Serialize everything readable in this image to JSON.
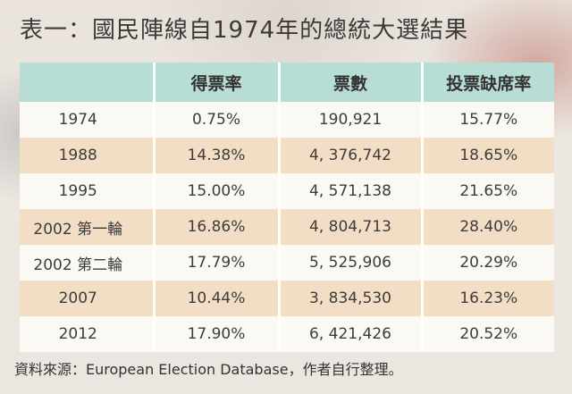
{
  "title": "表一：國民陣線自1974年的總統大選結果",
  "table": {
    "headers": [
      "",
      "得票率",
      "票數",
      "投票缺席率"
    ],
    "rows": [
      [
        "1974",
        "0.75%",
        "190,921",
        "15.77%"
      ],
      [
        "1988",
        "14.38%",
        "4, 376,742",
        "18.65%"
      ],
      [
        "1995",
        "15.00%",
        "4, 571,138",
        "21.65%"
      ],
      [
        "2002 第一輪",
        "16.86%",
        "4, 804,713",
        "28.40%"
      ],
      [
        "2002 第二輪",
        "17.79%",
        "5, 525,906",
        "20.29%"
      ],
      [
        "2007",
        "10.44%",
        "3, 834,530",
        "16.23%"
      ],
      [
        "2012",
        "17.90%",
        "6, 421,426",
        "20.52%"
      ]
    ]
  },
  "source": "資料來源：European Election Database，作者自行整理。"
}
